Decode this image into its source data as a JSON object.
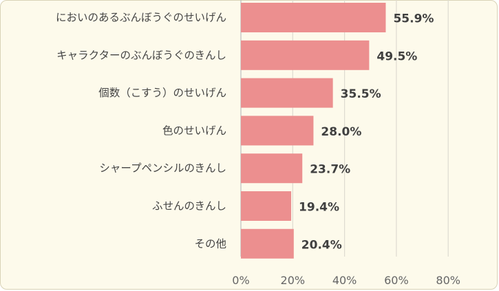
{
  "chart_data": {
    "type": "bar",
    "orientation": "horizontal",
    "categories": [
      "においのあるぶんぼうぐのせいげん",
      "キャラクターのぶんぼうぐのきんし",
      "個数（こすう）のせいげん",
      "色のせいげん",
      "シャープペンシルのきんし",
      "ふせんのきんし",
      "その他"
    ],
    "values": [
      55.9,
      49.5,
      35.5,
      28.0,
      23.7,
      19.4,
      20.4
    ],
    "value_labels": [
      "55.9%",
      "49.5%",
      "35.5%",
      "28.0%",
      "23.7%",
      "19.4%",
      "20.4%"
    ],
    "x_ticks": [
      0,
      20,
      40,
      60,
      80
    ],
    "x_tick_labels": [
      "0%",
      "20%",
      "40%",
      "60%",
      "80%"
    ],
    "xlim": [
      0,
      80
    ],
    "grid": true,
    "title": "",
    "xlabel": "",
    "ylabel": "",
    "bar_color": "#ec8f8f",
    "background_color": "#fdfaeb"
  }
}
